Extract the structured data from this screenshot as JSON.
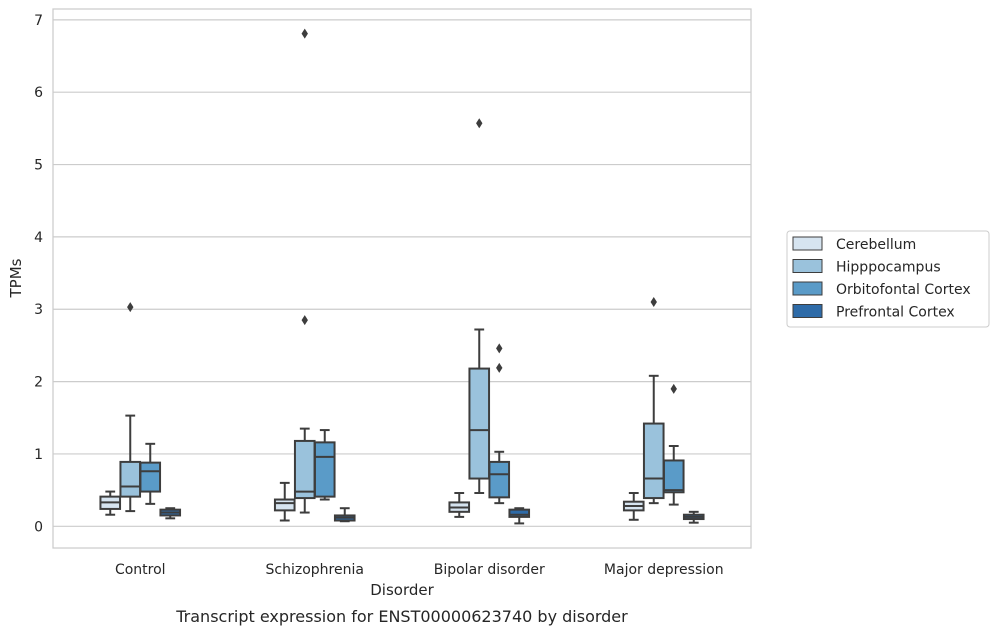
{
  "caption": "Transcript expression for ENST00000623740 by disorder",
  "chart_data": {
    "type": "box",
    "xlabel": "Disorder",
    "ylabel": "TPMs",
    "ylim": [
      -0.3,
      7.15
    ],
    "yticks": [
      0,
      1,
      2,
      3,
      4,
      5,
      6,
      7
    ],
    "grid": "horizontal",
    "legend_position": "right",
    "categories": [
      "Control",
      "Schizophrenia",
      "Bipolar disorder",
      "Major depression"
    ],
    "series": [
      {
        "name": "Cerebellum",
        "color": "#d6e4f0",
        "boxes": [
          {
            "whisker_low": 0.16,
            "q1": 0.24,
            "median": 0.33,
            "q3": 0.41,
            "whisker_high": 0.48,
            "outliers": []
          },
          {
            "whisker_low": 0.08,
            "q1": 0.22,
            "median": 0.32,
            "q3": 0.37,
            "whisker_high": 0.6,
            "outliers": []
          },
          {
            "whisker_low": 0.13,
            "q1": 0.2,
            "median": 0.26,
            "q3": 0.33,
            "whisker_high": 0.46,
            "outliers": []
          },
          {
            "whisker_low": 0.09,
            "q1": 0.22,
            "median": 0.28,
            "q3": 0.34,
            "whisker_high": 0.46,
            "outliers": []
          }
        ]
      },
      {
        "name": "Hipppocampus",
        "color": "#9ac2dc",
        "boxes": [
          {
            "whisker_low": 0.21,
            "q1": 0.41,
            "median": 0.55,
            "q3": 0.89,
            "whisker_high": 1.53,
            "outliers": [
              3.03
            ]
          },
          {
            "whisker_low": 0.19,
            "q1": 0.39,
            "median": 0.48,
            "q3": 1.18,
            "whisker_high": 1.35,
            "outliers": [
              2.85,
              6.81
            ]
          },
          {
            "whisker_low": 0.46,
            "q1": 0.66,
            "median": 1.33,
            "q3": 2.18,
            "whisker_high": 2.72,
            "outliers": [
              5.57
            ]
          },
          {
            "whisker_low": 0.32,
            "q1": 0.39,
            "median": 0.66,
            "q3": 1.42,
            "whisker_high": 2.08,
            "outliers": [
              3.1
            ]
          }
        ]
      },
      {
        "name": "Orbitofontal Cortex",
        "color": "#5a9bc8",
        "boxes": [
          {
            "whisker_low": 0.31,
            "q1": 0.48,
            "median": 0.76,
            "q3": 0.88,
            "whisker_high": 1.14,
            "outliers": []
          },
          {
            "whisker_low": 0.37,
            "q1": 0.41,
            "median": 0.96,
            "q3": 1.16,
            "whisker_high": 1.33,
            "outliers": []
          },
          {
            "whisker_low": 0.32,
            "q1": 0.4,
            "median": 0.72,
            "q3": 0.89,
            "whisker_high": 1.03,
            "outliers": [
              2.19,
              2.46
            ]
          },
          {
            "whisker_low": 0.3,
            "q1": 0.47,
            "median": 0.5,
            "q3": 0.91,
            "whisker_high": 1.11,
            "outliers": [
              1.9
            ]
          }
        ]
      },
      {
        "name": "Prefrontal Cortex",
        "color": "#2e6ba8",
        "boxes": [
          {
            "whisker_low": 0.11,
            "q1": 0.15,
            "median": 0.19,
            "q3": 0.23,
            "whisker_high": 0.25,
            "outliers": []
          },
          {
            "whisker_low": 0.07,
            "q1": 0.08,
            "median": 0.12,
            "q3": 0.15,
            "whisker_high": 0.25,
            "outliers": []
          },
          {
            "whisker_low": 0.04,
            "q1": 0.13,
            "median": 0.16,
            "q3": 0.23,
            "whisker_high": 0.25,
            "outliers": []
          },
          {
            "whisker_low": 0.05,
            "q1": 0.1,
            "median": 0.13,
            "q3": 0.16,
            "whisker_high": 0.2,
            "outliers": []
          }
        ]
      }
    ]
  }
}
